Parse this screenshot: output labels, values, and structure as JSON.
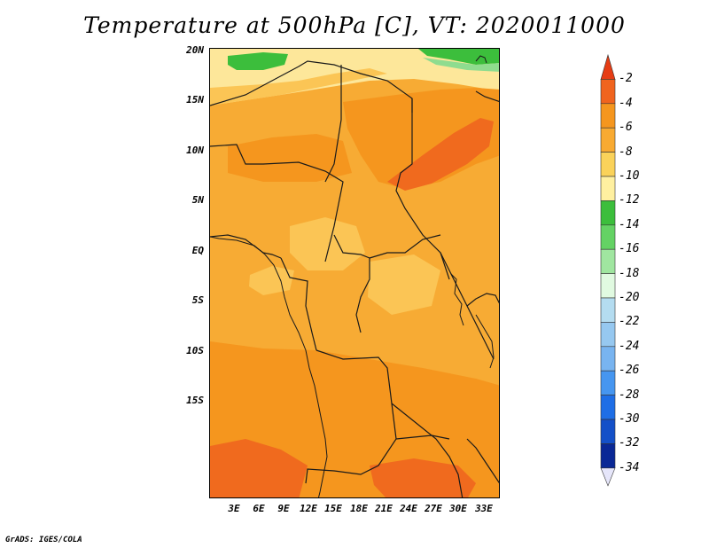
{
  "title": "Temperature at 500hPa [C], VT: 2020011000",
  "credit": "GrADS: IGES/COLA",
  "lat_labels": [
    "20N",
    "15N",
    "10N",
    "5N",
    "EQ",
    "5S",
    "10S",
    "15S"
  ],
  "lon_labels": [
    "3E",
    "6E",
    "9E",
    "12E",
    "15E",
    "18E",
    "21E",
    "24E",
    "27E",
    "30E",
    "33E"
  ],
  "colorbar": {
    "levels": [
      "-2",
      "-4",
      "-6",
      "-8",
      "-10",
      "-12",
      "-14",
      "-16",
      "-18",
      "-20",
      "-22",
      "-24",
      "-26",
      "-28",
      "-30",
      "-32",
      "-34"
    ],
    "colors": [
      "#e63c14",
      "#f0641e",
      "#f5961e",
      "#f8aa32",
      "#fad25a",
      "#fff0a0",
      "#3cbe3c",
      "#64d264",
      "#a0e6a0",
      "#e1fae1",
      "#b4dcf0",
      "#96c8f0",
      "#78b4f0",
      "#4696f0",
      "#1e6ee6",
      "#1450c8",
      "#0a2896",
      "#e6e6fa"
    ]
  },
  "map": {
    "fill_colors": {
      "base": "#f7ab34",
      "warm": "#f5961e",
      "hot": "#f06a1e",
      "cool": "#fbc555",
      "cooler": "#fde79a",
      "green": "#3cbe3c",
      "lightgreen": "#8fdc8f",
      "border": "#1a1a1a"
    }
  }
}
